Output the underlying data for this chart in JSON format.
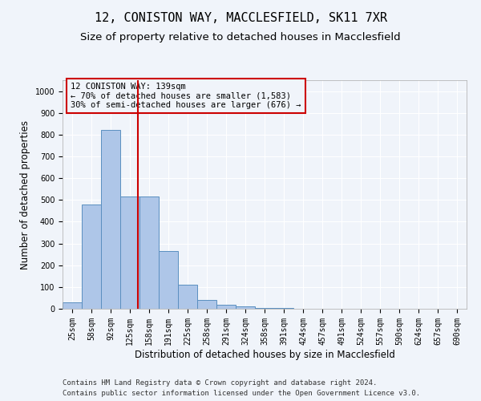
{
  "title1": "12, CONISTON WAY, MACCLESFIELD, SK11 7XR",
  "title2": "Size of property relative to detached houses in Macclesfield",
  "xlabel": "Distribution of detached houses by size in Macclesfield",
  "ylabel": "Number of detached properties",
  "footer1": "Contains HM Land Registry data © Crown copyright and database right 2024.",
  "footer2": "Contains public sector information licensed under the Open Government Licence v3.0.",
  "bar_labels": [
    "25sqm",
    "58sqm",
    "92sqm",
    "125sqm",
    "158sqm",
    "191sqm",
    "225sqm",
    "258sqm",
    "291sqm",
    "324sqm",
    "358sqm",
    "391sqm",
    "424sqm",
    "457sqm",
    "491sqm",
    "524sqm",
    "557sqm",
    "590sqm",
    "624sqm",
    "657sqm",
    "690sqm"
  ],
  "bar_values": [
    30,
    480,
    820,
    515,
    515,
    265,
    110,
    40,
    20,
    10,
    5,
    2,
    1,
    0,
    0,
    0,
    0,
    0,
    0,
    0,
    0
  ],
  "bar_color": "#aec6e8",
  "bar_edge_color": "#5a8fc0",
  "vline_color": "#cc0000",
  "ylim": [
    0,
    1050
  ],
  "annotation_text": "12 CONISTON WAY: 139sqm\n← 70% of detached houses are smaller (1,583)\n30% of semi-detached houses are larger (676) →",
  "annotation_box_color": "#cc0000",
  "background_color": "#f0f4fa",
  "grid_color": "#ffffff",
  "title_fontsize": 11,
  "subtitle_fontsize": 9.5,
  "axis_label_fontsize": 8.5,
  "tick_fontsize": 7,
  "annotation_fontsize": 7.5,
  "footer_fontsize": 6.5
}
